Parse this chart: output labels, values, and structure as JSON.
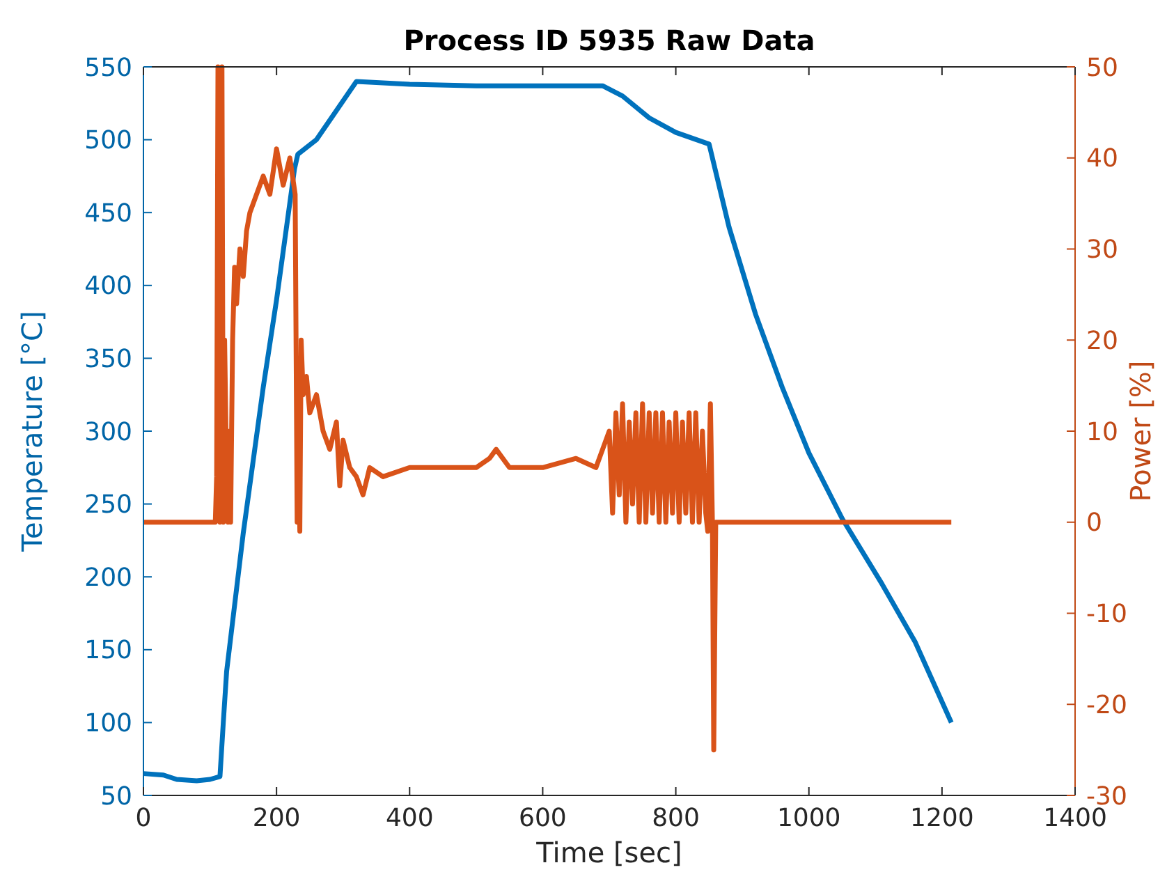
{
  "chart_data": {
    "type": "line",
    "title": "Process ID 5935 Raw Data",
    "xlabel": "Time [sec]",
    "ylabel": "Temperature [°C]",
    "y2label": "Power [%]",
    "xlim": [
      0,
      1400
    ],
    "xticks": [
      0,
      200,
      400,
      600,
      800,
      1000,
      1200,
      1400
    ],
    "ylim": [
      50,
      550
    ],
    "yticks": [
      50,
      100,
      150,
      200,
      250,
      300,
      350,
      400,
      450,
      500,
      550
    ],
    "y2lim": [
      -30,
      50
    ],
    "y2ticks": [
      -30,
      -20,
      -10,
      0,
      10,
      20,
      30,
      40,
      50
    ],
    "grid": false,
    "series": [
      {
        "color": "#0072bd",
        "x": [
          0,
          30,
          50,
          80,
          100,
          115,
          120,
          125,
          150,
          180,
          200,
          227,
          232,
          260,
          290,
          320,
          400,
          500,
          600,
          690,
          720,
          760,
          800,
          850,
          880,
          920,
          960,
          1000,
          1050,
          1110,
          1160,
          1214
        ],
        "values": [
          65,
          64,
          61,
          60,
          61,
          63,
          100,
          135,
          230,
          330,
          390,
          480,
          490,
          500,
          520,
          540,
          538,
          537,
          537,
          537,
          530,
          515,
          505,
          497,
          440,
          380,
          330,
          285,
          240,
          195,
          155,
          100
        ]
      },
      {
        "color": "#d95319",
        "axis": "y2",
        "x": [
          0,
          108,
          110,
          112,
          115,
          118,
          120,
          122,
          125,
          127,
          129,
          131,
          134,
          137,
          140,
          145,
          150,
          155,
          160,
          170,
          180,
          190,
          200,
          210,
          220,
          228,
          231,
          233,
          235,
          237,
          240,
          245,
          250,
          260,
          270,
          280,
          290,
          295,
          300,
          310,
          320,
          330,
          340,
          360,
          400,
          450,
          500,
          520,
          530,
          550,
          600,
          650,
          680,
          690,
          700,
          705,
          710,
          715,
          720,
          725,
          730,
          735,
          740,
          745,
          750,
          755,
          760,
          765,
          770,
          775,
          780,
          785,
          790,
          795,
          800,
          805,
          810,
          815,
          820,
          825,
          830,
          835,
          840,
          845,
          848,
          852,
          855,
          857,
          860,
          900,
          1000,
          1100,
          1214
        ],
        "values": [
          0,
          0,
          5,
          50,
          0,
          50,
          0,
          20,
          5,
          0,
          10,
          0,
          20,
          28,
          24,
          30,
          27,
          32,
          34,
          36,
          38,
          36,
          41,
          37,
          40,
          36,
          0,
          10,
          -1,
          20,
          14,
          16,
          12,
          14,
          10,
          8,
          11,
          4,
          9,
          6,
          5,
          3,
          6,
          5,
          6,
          6,
          6,
          7,
          8,
          6,
          6,
          7,
          6,
          8,
          10,
          1,
          12,
          3,
          13,
          0,
          11,
          2,
          12,
          0,
          13,
          0,
          12,
          1,
          12,
          0,
          12,
          0,
          11,
          1,
          12,
          0,
          11,
          1,
          12,
          0,
          12,
          0,
          10,
          1,
          -1,
          13,
          0,
          -25,
          0,
          0,
          0,
          0,
          0
        ]
      }
    ]
  }
}
